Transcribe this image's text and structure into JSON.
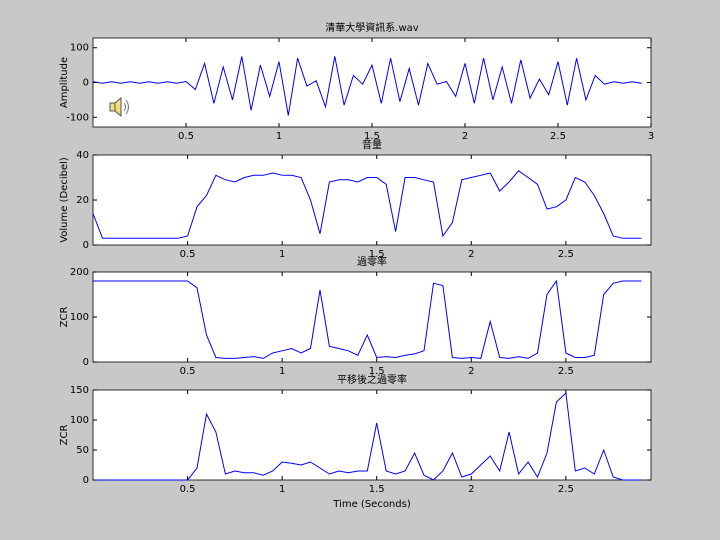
{
  "chart_data": [
    {
      "type": "line",
      "title": "清華大學資訊系.wav",
      "ylabel": "Amplitude",
      "grid": false,
      "xlim": [
        0,
        3
      ],
      "xticks": [
        0.5,
        1,
        1.5,
        2,
        2.5,
        3
      ],
      "ylim": [
        -128,
        128
      ],
      "yticks": [
        -100,
        0,
        100
      ],
      "x": [
        0,
        0.05,
        0.1,
        0.15,
        0.2,
        0.25,
        0.3,
        0.35,
        0.4,
        0.45,
        0.5,
        0.55,
        0.6,
        0.65,
        0.7,
        0.75,
        0.8,
        0.85,
        0.9,
        0.95,
        1,
        1.05,
        1.1,
        1.15,
        1.2,
        1.25,
        1.3,
        1.35,
        1.4,
        1.45,
        1.5,
        1.55,
        1.6,
        1.65,
        1.7,
        1.75,
        1.8,
        1.85,
        1.9,
        1.95,
        2,
        2.05,
        2.1,
        2.15,
        2.2,
        2.25,
        2.3,
        2.35,
        2.4,
        2.45,
        2.5,
        2.55,
        2.6,
        2.65,
        2.7,
        2.75,
        2.8,
        2.85,
        2.9,
        2.95
      ],
      "series": [
        {
          "color": "#0000ff",
          "values": [
            2,
            -2,
            2,
            -2,
            2,
            -2,
            2,
            -2,
            2,
            -2,
            3,
            -20,
            55,
            -60,
            45,
            -50,
            75,
            -80,
            50,
            -40,
            60,
            -95,
            70,
            -10,
            5,
            -70,
            75,
            -65,
            20,
            -5,
            50,
            -60,
            70,
            -55,
            40,
            -65,
            55,
            -5,
            3,
            -40,
            55,
            -60,
            70,
            -50,
            45,
            -60,
            65,
            -45,
            10,
            -35,
            60,
            -65,
            70,
            -50,
            20,
            -5,
            2,
            -2,
            2,
            -2
          ]
        }
      ]
    },
    {
      "type": "line",
      "title": "音量",
      "ylabel": "Volume (Decibel)",
      "grid": false,
      "xlim": [
        0,
        2.95
      ],
      "xticks": [
        0.5,
        1,
        1.5,
        2,
        2.5
      ],
      "ylim": [
        0,
        40
      ],
      "yticks": [
        0,
        20,
        40
      ],
      "x": [
        0,
        0.05,
        0.1,
        0.15,
        0.2,
        0.25,
        0.3,
        0.35,
        0.4,
        0.45,
        0.5,
        0.55,
        0.6,
        0.65,
        0.7,
        0.75,
        0.8,
        0.85,
        0.9,
        0.95,
        1,
        1.05,
        1.1,
        1.15,
        1.2,
        1.25,
        1.3,
        1.35,
        1.4,
        1.45,
        1.5,
        1.55,
        1.6,
        1.65,
        1.7,
        1.75,
        1.8,
        1.85,
        1.9,
        1.95,
        2,
        2.05,
        2.1,
        2.15,
        2.2,
        2.25,
        2.3,
        2.35,
        2.4,
        2.45,
        2.5,
        2.55,
        2.6,
        2.65,
        2.7,
        2.75,
        2.8,
        2.85,
        2.9
      ],
      "series": [
        {
          "color": "#0000ff",
          "values": [
            14,
            3,
            3,
            3,
            3,
            3,
            3,
            3,
            3,
            3,
            4,
            17,
            22,
            31,
            29,
            28,
            30,
            31,
            31,
            32,
            31,
            31,
            30,
            20,
            5,
            28,
            29,
            29,
            28,
            30,
            30,
            27,
            6,
            30,
            30,
            29,
            28,
            4,
            10,
            29,
            30,
            31,
            32,
            24,
            28,
            33,
            30,
            27,
            16,
            17,
            20,
            30,
            28,
            22,
            14,
            4,
            3,
            3,
            3
          ]
        }
      ]
    },
    {
      "type": "line",
      "title": "過零率",
      "ylabel": "ZCR",
      "grid": false,
      "xlim": [
        0,
        2.95
      ],
      "xticks": [
        0.5,
        1,
        1.5,
        2,
        2.5
      ],
      "ylim": [
        0,
        200
      ],
      "yticks": [
        0,
        100,
        200
      ],
      "x": [
        0,
        0.05,
        0.1,
        0.15,
        0.2,
        0.25,
        0.3,
        0.35,
        0.4,
        0.45,
        0.5,
        0.55,
        0.6,
        0.65,
        0.7,
        0.75,
        0.8,
        0.85,
        0.9,
        0.95,
        1,
        1.05,
        1.1,
        1.15,
        1.2,
        1.25,
        1.3,
        1.35,
        1.4,
        1.45,
        1.5,
        1.55,
        1.6,
        1.65,
        1.7,
        1.75,
        1.8,
        1.85,
        1.9,
        1.95,
        2,
        2.05,
        2.1,
        2.15,
        2.2,
        2.25,
        2.3,
        2.35,
        2.4,
        2.45,
        2.5,
        2.55,
        2.6,
        2.65,
        2.7,
        2.75,
        2.8,
        2.85,
        2.9
      ],
      "series": [
        {
          "color": "#0000ff",
          "values": [
            180,
            180,
            180,
            180,
            180,
            180,
            180,
            180,
            180,
            180,
            180,
            165,
            60,
            10,
            8,
            8,
            10,
            12,
            8,
            20,
            25,
            30,
            20,
            30,
            160,
            35,
            30,
            25,
            15,
            60,
            10,
            12,
            10,
            15,
            18,
            25,
            175,
            170,
            10,
            8,
            10,
            8,
            90,
            10,
            8,
            12,
            8,
            20,
            150,
            180,
            20,
            10,
            10,
            15,
            150,
            175,
            180,
            180,
            180
          ]
        }
      ]
    },
    {
      "type": "line",
      "title": "平移後之過零率",
      "ylabel": "ZCR",
      "xlabel": "Time (Seconds)",
      "grid": false,
      "xlim": [
        0,
        2.95
      ],
      "xticks": [
        0.5,
        1,
        1.5,
        2,
        2.5
      ],
      "ylim": [
        0,
        150
      ],
      "yticks": [
        0,
        50,
        100,
        150
      ],
      "x": [
        0,
        0.05,
        0.1,
        0.15,
        0.2,
        0.25,
        0.3,
        0.35,
        0.4,
        0.45,
        0.5,
        0.55,
        0.6,
        0.65,
        0.7,
        0.75,
        0.8,
        0.85,
        0.9,
        0.95,
        1,
        1.05,
        1.1,
        1.15,
        1.2,
        1.25,
        1.3,
        1.35,
        1.4,
        1.45,
        1.5,
        1.55,
        1.6,
        1.65,
        1.7,
        1.75,
        1.8,
        1.85,
        1.9,
        1.95,
        2,
        2.05,
        2.1,
        2.15,
        2.2,
        2.25,
        2.3,
        2.35,
        2.4,
        2.45,
        2.5,
        2.55,
        2.6,
        2.65,
        2.7,
        2.75,
        2.8,
        2.85,
        2.9
      ],
      "series": [
        {
          "color": "#0000ff",
          "values": [
            0,
            0,
            0,
            0,
            0,
            0,
            0,
            0,
            0,
            0,
            0,
            20,
            110,
            80,
            10,
            15,
            12,
            12,
            8,
            15,
            30,
            28,
            25,
            30,
            20,
            10,
            15,
            12,
            15,
            15,
            95,
            15,
            10,
            15,
            45,
            8,
            0,
            15,
            45,
            5,
            10,
            25,
            40,
            15,
            80,
            10,
            30,
            5,
            45,
            130,
            145,
            15,
            20,
            10,
            50,
            5,
            0,
            0,
            0
          ]
        }
      ]
    }
  ]
}
